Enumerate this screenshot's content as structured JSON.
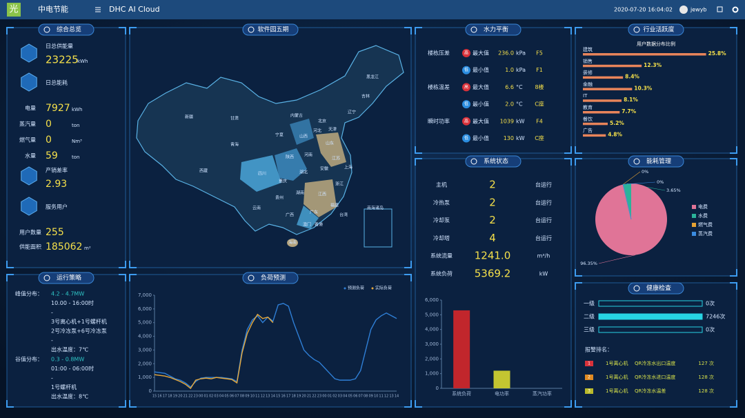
{
  "header": {
    "logo": "光",
    "brand": "中电节能",
    "app": "DHC AI Cloud",
    "datetime": "2020-07-20 16:04:02",
    "user": "jewyb"
  },
  "overview": {
    "title": "综合总览",
    "supply": {
      "label": "日总供能量",
      "value": 23225,
      "unit": "kWh"
    },
    "consumption": {
      "label": "日总能耗"
    },
    "metrics": [
      {
        "label": "电量",
        "value": 7927,
        "unit": "kWh"
      },
      {
        "label": "蒸汽量",
        "value": 0,
        "unit": "ton"
      },
      {
        "label": "燃气量",
        "value": 0,
        "unit": "Nm³"
      },
      {
        "label": "水量",
        "value": 59,
        "unit": "ton"
      }
    ],
    "loss": {
      "label": "产销差率",
      "value": 2.93
    },
    "service": {
      "label": "服务用户"
    },
    "users": {
      "label": "用户数量",
      "value": 255
    },
    "area": {
      "label": "供能面积",
      "value": 185062,
      "unit": "m²"
    }
  },
  "strategy": {
    "title": "运行策略",
    "peak": {
      "label": "峰值分布：",
      "lines": [
        "4.2 - 4.7MW",
        "10.00 - 16:00时",
        "-",
        "3号离心机+1号螺杆机",
        "2号冷冻泵+6号冷冻泵",
        "-",
        "出水温度：7℃"
      ]
    },
    "valley": {
      "label": "谷值分布：",
      "lines": [
        "0.3 - 0.8MW",
        "01:00 - 06:00时",
        "-",
        "1号螺杆机",
        "出水温度：8℃"
      ]
    }
  },
  "map": {
    "title": "软件园五期",
    "labels": [
      "新疆",
      "西藏",
      "青海",
      "甘肃",
      "内蒙古",
      "黑龙江",
      "吉林",
      "辽宁",
      "北京",
      "天津",
      "河北",
      "山西",
      "宁夏",
      "陕西",
      "山东",
      "河南",
      "江苏",
      "安徽",
      "湖北",
      "四川",
      "重庆",
      "上海",
      "浙江",
      "湖南",
      "江西",
      "贵州",
      "云南",
      "广西",
      "广东",
      "福建",
      "台湾",
      "香港",
      "澳门",
      "海南",
      "南海诸岛"
    ]
  },
  "water": {
    "title": "水力平衡",
    "rows": [
      {
        "group": "楼栋压差",
        "badge": "高",
        "kind": "最大值",
        "value": "236.0",
        "unit": "kPa",
        "loc": "F5"
      },
      {
        "badge": "低",
        "kind": "最小值",
        "value": "1.0",
        "unit": "kPa",
        "loc": "F1"
      },
      {
        "group": "楼栋温差",
        "badge": "高",
        "kind": "最大值",
        "value": "6.6",
        "unit": "°C",
        "loc": "8楼"
      },
      {
        "badge": "低",
        "kind": "最小值",
        "value": "2.0",
        "unit": "°C",
        "loc": "C座"
      },
      {
        "group": "瞬时功率",
        "badge": "高",
        "kind": "最大值",
        "value": "1039",
        "unit": "kW",
        "loc": "F4"
      },
      {
        "badge": "低",
        "kind": "最小值",
        "value": "130",
        "unit": "kW",
        "loc": "C座"
      }
    ]
  },
  "system": {
    "title": "系统状态",
    "rows": [
      {
        "label": "主机",
        "value": 2,
        "unit": "台运行"
      },
      {
        "label": "冷热泵",
        "value": 2,
        "unit": "台运行"
      },
      {
        "label": "冷却泵",
        "value": 2,
        "unit": "台运行"
      },
      {
        "label": "冷却塔",
        "value": 4,
        "unit": "台运行"
      },
      {
        "label": "系统流量",
        "value": "1241.0",
        "unit": "m³/h"
      },
      {
        "label": "系统负荷",
        "value": "5369.2",
        "unit": "kW"
      }
    ]
  },
  "health": {
    "ranking_label": "报警排名：",
    "rows": [
      {
        "rank": "1",
        "device": "1号离心机",
        "item": "QR冷冻水出口温度",
        "count": "127 次"
      },
      {
        "rank": "2",
        "device": "1号离心机",
        "item": "QR冷冻水进口温度",
        "count": "128 次"
      },
      {
        "rank": "3",
        "device": "1号离心机",
        "item": "QR冷冻水温差",
        "count": "128 次"
      }
    ]
  },
  "chart_data": [
    {
      "type": "line",
      "title": "负荷预测",
      "categories": [
        "15",
        "16",
        "17",
        "18",
        "19",
        "20",
        "21",
        "22",
        "23",
        "00",
        "01",
        "02",
        "03",
        "04",
        "05",
        "06",
        "07",
        "08",
        "09",
        "10",
        "11",
        "12",
        "13",
        "14",
        "15",
        "16",
        "17",
        "18",
        "19",
        "20",
        "21",
        "22",
        "23",
        "00",
        "01",
        "02",
        "03",
        "04",
        "05",
        "06",
        "07",
        "08",
        "09",
        "10",
        "11",
        "12",
        "13",
        "14"
      ],
      "series": [
        {
          "name": "预测负荷",
          "color": "#2f7fd6",
          "values": [
            1400,
            1350,
            1300,
            1100,
            900,
            800,
            600,
            300,
            700,
            950,
            1000,
            1000,
            1000,
            1000,
            950,
            900,
            700,
            3000,
            4500,
            5200,
            5500,
            5000,
            5400,
            5100,
            6300,
            6400,
            6200,
            5000,
            4000,
            3000,
            2600,
            2300,
            2100,
            1700,
            1300,
            900,
            800,
            800,
            800,
            900,
            1500,
            3000,
            4500,
            5200,
            5500,
            5700,
            5500,
            5300
          ]
        },
        {
          "name": "实际负荷",
          "color": "#e9a93a",
          "values": [
            1200,
            1150,
            1100,
            1000,
            850,
            700,
            500,
            200,
            800,
            900,
            950,
            900,
            1000,
            950,
            900,
            850,
            600,
            2800,
            4200,
            5000,
            5600,
            5300,
            5400,
            5000,
            null,
            null,
            null,
            null,
            null,
            null,
            null,
            null,
            null,
            null,
            null,
            null,
            null,
            null,
            null,
            null,
            null,
            null,
            null,
            null,
            null,
            null,
            null,
            null
          ]
        }
      ],
      "ylim": [
        0,
        7000
      ],
      "yticks": [
        0,
        {
          "value": 1000,
          "label": "1,000"
        },
        {
          "value": 2000,
          "label": "2,000"
        },
        {
          "value": 3000,
          "label": "3,000"
        },
        {
          "value": 4000,
          "label": "4,000"
        },
        {
          "value": 5000,
          "label": "5,000"
        },
        {
          "value": 6000,
          "label": "6,000"
        },
        {
          "value": 7000,
          "label": "7,000"
        }
      ]
    },
    {
      "type": "bar",
      "categories": [
        "系统负荷",
        "电功率",
        "蒸汽功率"
      ],
      "values": [
        5300,
        1200,
        0
      ],
      "colors": [
        "#c1262c",
        "#c3c531",
        "#3a8be0"
      ],
      "ylim": [
        0,
        6000
      ],
      "yticks": [
        0,
        {
          "value": 1000,
          "label": "1,000"
        },
        {
          "value": 2000,
          "label": "2,000"
        },
        {
          "value": 3000,
          "label": "3,000"
        },
        {
          "value": 4000,
          "label": "4,000"
        },
        {
          "value": 5000,
          "label": "5,000"
        },
        {
          "value": 6000,
          "label": "6,000"
        }
      ]
    },
    {
      "type": "hbar",
      "title": "行业活跃度",
      "subtitle": "用户数据分布比例",
      "categories": [
        "建筑",
        "销售",
        "装修",
        "金融",
        "IT",
        "教育",
        "餐饮",
        "广告"
      ],
      "values": [
        25.8,
        12.3,
        8.4,
        10.3,
        8.1,
        7.7,
        5.2,
        4.8
      ],
      "value_labels": [
        "25.8%",
        "12.3%",
        "8.4%",
        "10.3%",
        "8.1%",
        "7.7%",
        "5.2%",
        "4.8%"
      ],
      "color": "#e8845a",
      "xlim": [
        0,
        26
      ]
    },
    {
      "type": "pie",
      "title": "能耗管理",
      "categories": [
        "电费",
        "水费",
        "燃气费",
        "蒸汽费"
      ],
      "values": [
        96.35,
        3.65,
        0,
        0
      ],
      "value_labels": [
        "96.35%",
        "3.65%",
        "0%",
        "0%"
      ],
      "colors": [
        "#e07497",
        "#2bb39a",
        "#e6a233",
        "#3a8be0"
      ],
      "legend": "right"
    },
    {
      "type": "hbar",
      "title": "健康检查",
      "categories": [
        "一级",
        "二级",
        "三级"
      ],
      "values": [
        0,
        7246,
        0
      ],
      "value_labels": [
        "0次",
        "7246次",
        "0次"
      ],
      "color": "#27d4e3",
      "xlim": [
        0,
        7246
      ]
    }
  ]
}
